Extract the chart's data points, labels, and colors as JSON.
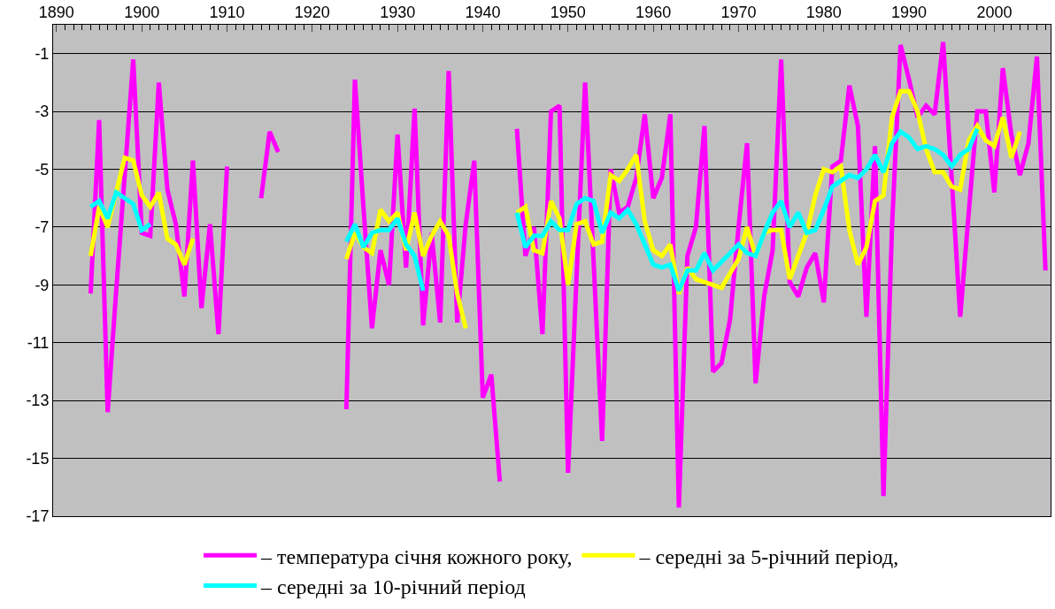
{
  "chart_data": {
    "type": "line",
    "xlim": [
      1889.6,
      2006.6
    ],
    "ylim": [
      -17,
      0
    ],
    "xticks": [
      1890,
      1900,
      1910,
      1920,
      1930,
      1940,
      1950,
      1960,
      1970,
      1980,
      1990,
      2000
    ],
    "yticks": [
      -1,
      -3,
      -5,
      -7,
      -9,
      -11,
      -13,
      -15,
      -17
    ],
    "grid": "y",
    "legend": "bottom",
    "marker": "none",
    "line_style": "solid",
    "series": [
      {
        "name": "– температура січня кожного року,",
        "color": "#ff00ff",
        "x": [
          1894,
          1895,
          1896,
          1897,
          1898,
          1899,
          1900,
          1901,
          1902,
          1903,
          1904,
          1905,
          1906,
          1907,
          1908,
          1909,
          1910,
          1911,
          1914,
          1915,
          1916,
          1917,
          1924,
          1925,
          1926,
          1927,
          1928,
          1929,
          1930,
          1931,
          1932,
          1933,
          1934,
          1935,
          1936,
          1937,
          1938,
          1939,
          1940,
          1941,
          1942,
          1943,
          1944,
          1945,
          1946,
          1947,
          1948,
          1949,
          1950,
          1951,
          1952,
          1953,
          1954,
          1955,
          1956,
          1957,
          1958,
          1959,
          1960,
          1961,
          1962,
          1963,
          1964,
          1965,
          1966,
          1967,
          1968,
          1969,
          1970,
          1971,
          1972,
          1973,
          1974,
          1975,
          1976,
          1977,
          1978,
          1979,
          1980,
          1981,
          1982,
          1983,
          1984,
          1985,
          1986,
          1987,
          1988,
          1989,
          1990,
          1991,
          1992,
          1993,
          1994,
          1995,
          1996,
          1997,
          1998,
          1999,
          2000,
          2001,
          2002,
          2003,
          2004,
          2005,
          2006
        ],
        "values": [
          -9.3,
          -3.3,
          -13.4,
          -9.2,
          -5.2,
          -1.2,
          -7.2,
          -7.3,
          -2.0,
          -5.7,
          -6.9,
          -9.4,
          -4.7,
          -9.8,
          -6.9,
          -10.7,
          -4.9,
          null,
          -6.0,
          -3.7,
          -4.4,
          null,
          -13.3,
          -1.9,
          -6.3,
          -10.5,
          -7.8,
          -9.0,
          -3.8,
          -8.4,
          -2.9,
          -10.4,
          -7.2,
          -10.3,
          -1.6,
          -10.3,
          -6.9,
          -4.7,
          -12.9,
          -12.1,
          -15.8,
          null,
          -3.6,
          -8.0,
          -7.0,
          -10.7,
          -3.0,
          -2.8,
          -15.5,
          -8.7,
          -2.0,
          -8.2,
          -14.4,
          -5.0,
          -6.5,
          -6.3,
          -5.3,
          -3.1,
          -6.0,
          -5.3,
          -3.1,
          -16.7,
          -8.0,
          -7.0,
          -3.5,
          -12.0,
          -11.7,
          -10.2,
          -7.0,
          -4.1,
          -12.4,
          -9.4,
          -7.8,
          -1.2,
          -8.9,
          -9.4,
          -8.4,
          -7.9,
          -9.6,
          -4.9,
          -4.7,
          -2.1,
          -3.5,
          -10.1,
          -4.2,
          -16.3,
          -7.0,
          -0.7,
          -1.9,
          -3.2,
          -2.8,
          -3.1,
          -0.6,
          -5.3,
          -10.1,
          -6.5,
          -3.0,
          -3.0,
          -5.8,
          -1.5,
          -3.8,
          -5.2,
          -4.1,
          -1.1,
          -8.5
        ]
      },
      {
        "name": "– середні за 5-річний період,",
        "color": "#ffff00",
        "x": [
          1894,
          1895,
          1896,
          1897,
          1898,
          1899,
          1900,
          1901,
          1902,
          1903,
          1904,
          1905,
          1906,
          1907,
          1924,
          1925,
          1926,
          1927,
          1928,
          1929,
          1930,
          1931,
          1932,
          1933,
          1934,
          1935,
          1936,
          1937,
          1938,
          1939,
          1944,
          1945,
          1946,
          1947,
          1948,
          1949,
          1950,
          1951,
          1952,
          1953,
          1954,
          1955,
          1956,
          1957,
          1958,
          1959,
          1960,
          1961,
          1962,
          1963,
          1964,
          1965,
          1966,
          1967,
          1968,
          1969,
          1970,
          1971,
          1972,
          1973,
          1974,
          1975,
          1976,
          1977,
          1978,
          1979,
          1980,
          1981,
          1982,
          1983,
          1984,
          1985,
          1986,
          1987,
          1988,
          1989,
          1990,
          1991,
          1992,
          1993,
          1994,
          1995,
          1996,
          1997,
          1998,
          1999,
          2000,
          2001,
          2002,
          2003
        ],
        "values": [
          -8.0,
          -6.3,
          -7.0,
          -5.8,
          -4.6,
          -4.7,
          -5.9,
          -6.3,
          -5.8,
          -7.4,
          -7.6,
          -8.3,
          -7.4,
          null,
          -8.1,
          -7.2,
          -7.7,
          -7.9,
          -6.4,
          -6.8,
          -6.5,
          -7.8,
          -6.5,
          -8.0,
          -7.3,
          -6.8,
          -7.3,
          -9.3,
          -10.5,
          null,
          -6.5,
          -6.3,
          -7.8,
          -7.9,
          -6.1,
          -6.7,
          -9.0,
          -6.9,
          -6.8,
          -7.6,
          -7.5,
          -5.2,
          -5.4,
          -5.0,
          -4.5,
          -6.8,
          -7.8,
          -8.0,
          -7.6,
          -9.3,
          -8.4,
          -8.8,
          -8.9,
          -9.0,
          -9.1,
          -8.6,
          -8.1,
          -7.0,
          -8.0,
          -7.2,
          -7.1,
          -7.1,
          -8.8,
          -8.0,
          -7.2,
          -5.9,
          -5.0,
          -5.1,
          -4.9,
          -7.1,
          -8.3,
          -7.7,
          -6.1,
          -5.9,
          -3.2,
          -2.3,
          -2.3,
          -3.0,
          -4.3,
          -5.1,
          -5.1,
          -5.6,
          -5.7,
          -4.0,
          -3.5,
          -4.0,
          -4.2,
          -3.2,
          -4.6,
          -3.7
        ]
      },
      {
        "name": "– середні за 10-річний період",
        "color": "#00ffff",
        "x": [
          1894,
          1895,
          1896,
          1897,
          1898,
          1899,
          1900,
          1901,
          1902,
          1924,
          1925,
          1926,
          1927,
          1928,
          1929,
          1930,
          1931,
          1932,
          1933,
          1934,
          1944,
          1945,
          1946,
          1947,
          1948,
          1949,
          1950,
          1951,
          1952,
          1953,
          1954,
          1955,
          1956,
          1957,
          1958,
          1959,
          1960,
          1961,
          1962,
          1963,
          1964,
          1965,
          1966,
          1967,
          1968,
          1969,
          1970,
          1971,
          1972,
          1973,
          1974,
          1975,
          1976,
          1977,
          1978,
          1979,
          1980,
          1981,
          1982,
          1983,
          1984,
          1985,
          1986,
          1987,
          1988,
          1989,
          1990,
          1991,
          1992,
          1993,
          1994,
          1995,
          1996,
          1997,
          1998
        ],
        "values": [
          -6.3,
          -6.1,
          -6.7,
          -5.8,
          -6.0,
          -6.2,
          -7.1,
          -6.9,
          null,
          -7.5,
          -6.9,
          -7.7,
          -7.2,
          -7.1,
          -7.1,
          -6.7,
          -7.6,
          -8.0,
          -9.2,
          null,
          -6.5,
          -7.7,
          -7.3,
          -7.3,
          -6.8,
          -7.1,
          -7.1,
          -6.2,
          -6.0,
          -6.1,
          -7.2,
          -6.5,
          -6.7,
          -6.4,
          -6.9,
          -7.6,
          -8.3,
          -8.4,
          -8.3,
          -9.2,
          -8.5,
          -8.5,
          -7.9,
          -8.5,
          -8.2,
          -7.9,
          -7.6,
          -7.9,
          -8.0,
          -7.2,
          -6.5,
          -6.1,
          -7.0,
          -6.5,
          -7.2,
          -7.1,
          -6.4,
          -5.6,
          -5.4,
          -5.2,
          -5.3,
          -5.0,
          -4.5,
          -5.1,
          -4.1,
          -3.7,
          -3.9,
          -4.3,
          -4.2,
          -4.3,
          -4.5,
          -4.9,
          -4.5,
          -4.3,
          -3.6
        ]
      }
    ]
  }
}
